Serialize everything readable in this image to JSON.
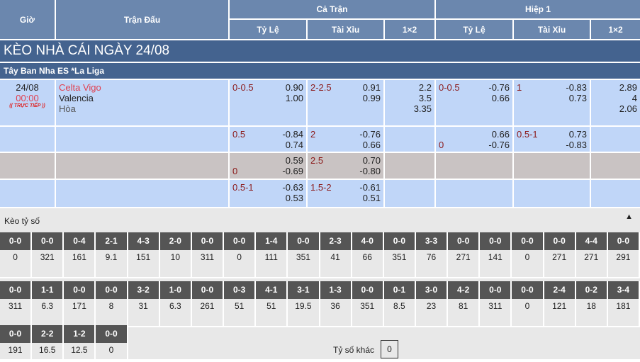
{
  "header": {
    "gio": "Giờ",
    "tran_dau": "Trận Đấu",
    "ca_tran": "Cả Trận",
    "hiep1": "Hiệp 1",
    "cols": [
      "Tỷ Lệ",
      "Tài Xỉu",
      "1×2",
      "Tỷ Lệ",
      "Tài Xỉu",
      "1×2"
    ]
  },
  "title": "KÈO NHÀ CÁI NGÀY 24/08",
  "league": "Tây Ban Nha ES *La Liga",
  "match": {
    "date": "24/08",
    "time": "00:00",
    "live_badge": "TRỰC TIẾP",
    "home": "Celta Vigo",
    "away": "Valencia",
    "draw": "Hòa"
  },
  "rows": [
    {
      "gray": false,
      "cells": [
        [
          [
            "0-0.5",
            "0.90"
          ],
          [
            "",
            "1.00"
          ]
        ],
        [
          [
            "2-2.5",
            "0.91"
          ],
          [
            "",
            "0.99"
          ]
        ],
        [
          [
            "",
            "2.2"
          ],
          [
            "",
            "3.5"
          ],
          [
            "",
            "3.35"
          ]
        ],
        [
          [
            "0-0.5",
            "-0.76"
          ],
          [
            "",
            "0.66"
          ]
        ],
        [
          [
            "1",
            "-0.83"
          ],
          [
            "",
            "0.73"
          ]
        ],
        [
          [
            "",
            "2.89"
          ],
          [
            "",
            "4"
          ],
          [
            "",
            "2.06"
          ]
        ]
      ]
    },
    {
      "gray": false,
      "cells": [
        [
          [
            "0.5",
            "-0.84"
          ],
          [
            "",
            "0.74"
          ]
        ],
        [
          [
            "2",
            "-0.76"
          ],
          [
            "",
            "0.66"
          ]
        ],
        [],
        [
          [
            "",
            "0.66"
          ],
          [
            "0",
            "-0.76"
          ]
        ],
        [
          [
            "0.5-1",
            "0.73"
          ],
          [
            "",
            "-0.83"
          ]
        ],
        []
      ]
    },
    {
      "gray": true,
      "cells": [
        [
          [
            "",
            "0.59"
          ],
          [
            "0",
            "-0.69"
          ]
        ],
        [
          [
            "2.5",
            "0.70"
          ],
          [
            "",
            "-0.80"
          ]
        ],
        [],
        [],
        [],
        []
      ]
    },
    {
      "gray": false,
      "cells": [
        [
          [
            "0.5-1",
            "-0.63"
          ],
          [
            "",
            "0.53"
          ]
        ],
        [
          [
            "1.5-2",
            "-0.61"
          ],
          [
            "",
            "0.51"
          ]
        ],
        [],
        [],
        [],
        []
      ]
    }
  ],
  "score_section": {
    "title": "Kèo tỷ số",
    "collapse_icon": "triangle-up-icon",
    "other_label": "Tỷ số khác",
    "other_value": "0",
    "rows": [
      [
        [
          "0-0",
          "0"
        ],
        [
          "0-0",
          "321"
        ],
        [
          "0-4",
          "161"
        ],
        [
          "2-1",
          "9.1"
        ],
        [
          "4-3",
          "151"
        ],
        [
          "2-0",
          "10"
        ],
        [
          "0-0",
          "311"
        ],
        [
          "0-0",
          "0"
        ],
        [
          "1-4",
          "111"
        ],
        [
          "0-0",
          "351"
        ],
        [
          "2-3",
          "41"
        ],
        [
          "4-0",
          "66"
        ],
        [
          "0-0",
          "351"
        ],
        [
          "3-3",
          "76"
        ],
        [
          "0-0",
          "271"
        ],
        [
          "0-0",
          "141"
        ],
        [
          "0-0",
          "0"
        ],
        [
          "0-0",
          "271"
        ],
        [
          "4-4",
          "271"
        ],
        [
          "0-0",
          "291"
        ]
      ],
      [
        [
          "0-0",
          "311"
        ],
        [
          "1-1",
          "6.3"
        ],
        [
          "0-0",
          "171"
        ],
        [
          "0-0",
          "8"
        ],
        [
          "3-2",
          "31"
        ],
        [
          "1-0",
          "6.3"
        ],
        [
          "0-0",
          "261"
        ],
        [
          "0-3",
          "51"
        ],
        [
          "4-1",
          "51"
        ],
        [
          "3-1",
          "19.5"
        ],
        [
          "1-3",
          "36"
        ],
        [
          "0-0",
          "351"
        ],
        [
          "0-1",
          "8.5"
        ],
        [
          "3-0",
          "23"
        ],
        [
          "4-2",
          "81"
        ],
        [
          "0-0",
          "311"
        ],
        [
          "0-0",
          "0"
        ],
        [
          "2-4",
          "121"
        ],
        [
          "0-2",
          "18"
        ],
        [
          "3-4",
          "181"
        ]
      ],
      [
        [
          "0-0",
          "191"
        ],
        [
          "2-2",
          "16.5"
        ],
        [
          "1-2",
          "12.5"
        ],
        [
          "0-0",
          "0"
        ]
      ]
    ]
  }
}
